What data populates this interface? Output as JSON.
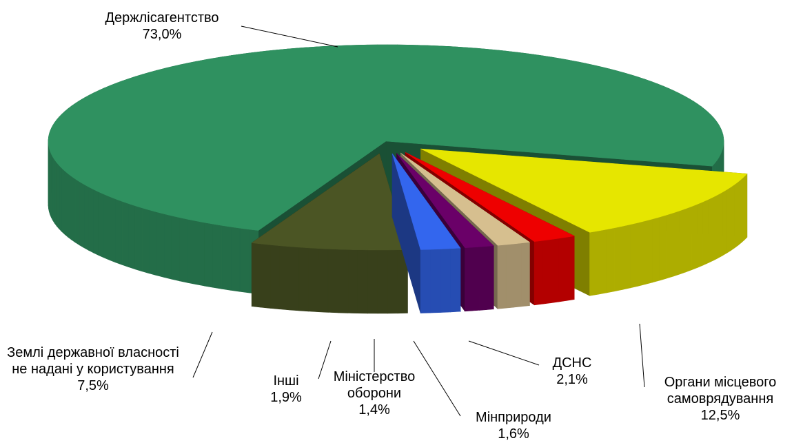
{
  "chart_data": {
    "type": "pie",
    "three_d": true,
    "categories": [
      "Держлісагентство",
      "Органи місцевого самоврядування",
      "ДСНС",
      "Мінприроди",
      "Міністерство оборони",
      "Інші",
      "Землі державної власності не надані у користування"
    ],
    "values": [
      73.0,
      12.5,
      2.1,
      1.6,
      1.4,
      1.9,
      7.5
    ],
    "value_labels": [
      "73,0%",
      "12,5%",
      "2,1%",
      "1,6%",
      "1,4%",
      "1,9%",
      "7,5%"
    ],
    "colors": [
      "#2f9160",
      "#e6e600",
      "#ee0000",
      "#d6bf8f",
      "#6a0068",
      "#3366ee",
      "#4b5524"
    ]
  }
}
